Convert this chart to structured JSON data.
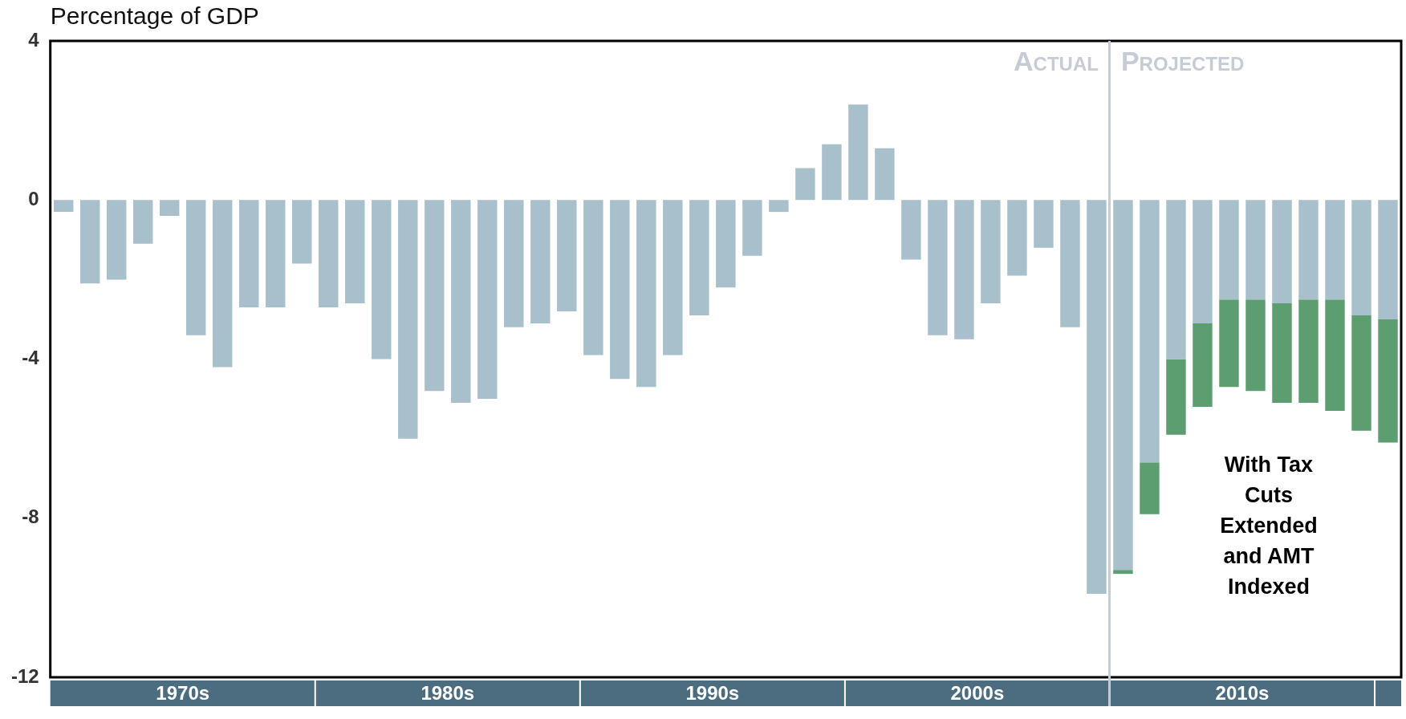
{
  "chart_data": {
    "type": "bar",
    "ylabel": "Percentage of GDP",
    "stacked": true,
    "categories": [
      null,
      null,
      null,
      null,
      "1970s",
      null,
      null,
      null,
      null,
      null,
      null,
      null,
      null,
      null,
      "1980s",
      null,
      null,
      null,
      null,
      null,
      null,
      null,
      null,
      null,
      "1990s",
      null,
      null,
      null,
      null,
      null,
      null,
      null,
      null,
      null,
      "2000s",
      null,
      null,
      null,
      null,
      null,
      null,
      null,
      null,
      null,
      "2010s",
      null,
      null,
      null,
      null,
      null,
      null
    ],
    "ylim": [
      -12,
      4
    ],
    "yticks": [
      -12,
      -8,
      -4,
      0,
      4
    ],
    "series": [
      {
        "color": "#a8bfcc",
        "values": [
          -0.3,
          -2.1,
          -2.0,
          -1.1,
          -0.4,
          -3.4,
          -4.2,
          -2.7,
          -2.7,
          -1.6,
          -2.7,
          -2.6,
          -4.0,
          -6.0,
          -4.8,
          -5.1,
          -5.0,
          -3.2,
          -3.1,
          -2.8,
          -3.9,
          -4.5,
          -4.7,
          -3.9,
          -2.9,
          -2.2,
          -1.4,
          -0.3,
          0.8,
          1.4,
          2.4,
          1.3,
          -1.5,
          -3.4,
          -3.5,
          -2.6,
          -1.9,
          -1.2,
          -3.2,
          -9.9,
          -9.3,
          -6.6,
          -4.0,
          -3.1,
          -2.5,
          -2.5,
          -2.6,
          -2.5,
          -2.5,
          -2.9,
          -3.0
        ]
      },
      {
        "name": "With Tax Cuts Extended and AMT Indexed",
        "color": "#5c9e6f",
        "values": [
          null,
          null,
          null,
          null,
          null,
          null,
          null,
          null,
          null,
          null,
          null,
          null,
          null,
          null,
          null,
          null,
          null,
          null,
          null,
          null,
          null,
          null,
          null,
          null,
          null,
          null,
          null,
          null,
          null,
          null,
          null,
          null,
          null,
          null,
          null,
          null,
          null,
          null,
          null,
          null,
          -0.1,
          -1.3,
          -1.9,
          -2.1,
          -2.2,
          -2.3,
          -2.5,
          -2.6,
          -2.8,
          -2.9,
          -3.1
        ]
      }
    ],
    "annotations": [
      "Actual",
      "Projected"
    ],
    "grid": false,
    "legend": false
  }
}
